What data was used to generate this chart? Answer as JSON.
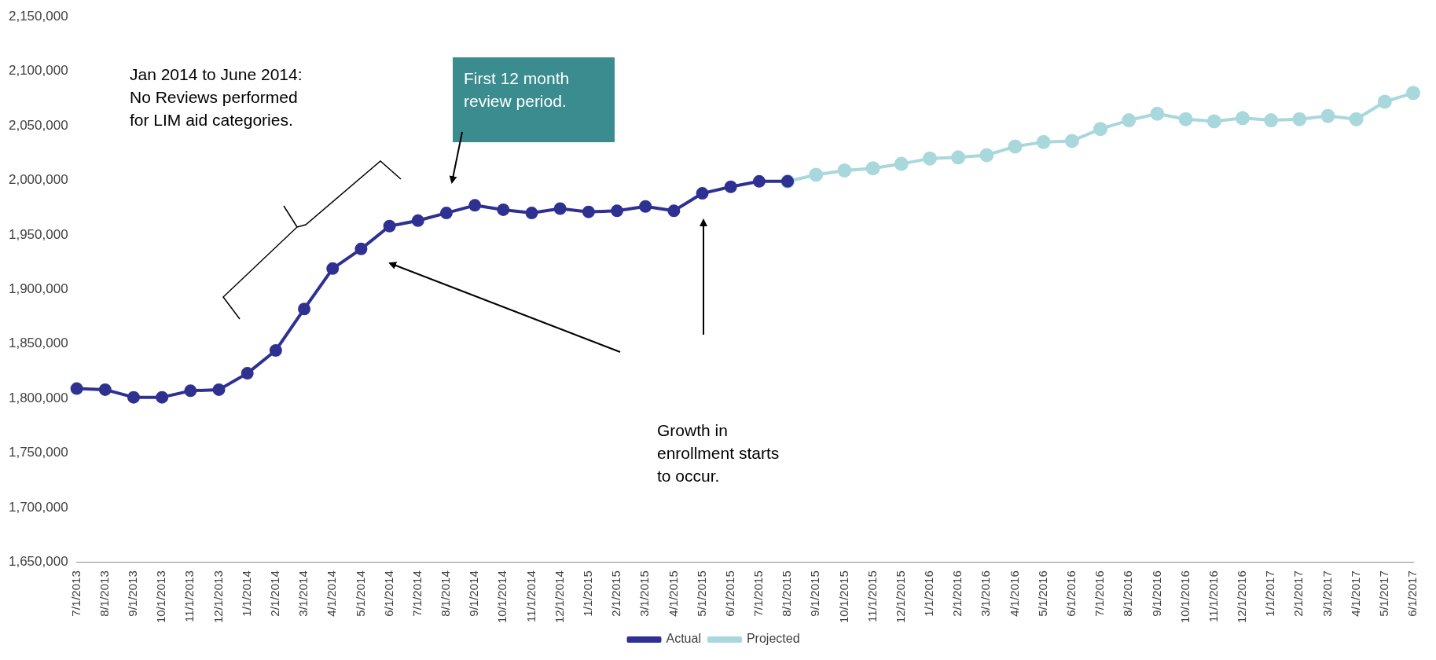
{
  "chart_data": {
    "type": "line",
    "categories": [
      "7/1/2013",
      "8/1/2013",
      "9/1/2013",
      "10/1/2013",
      "11/1/2013",
      "12/1/2013",
      "1/1/2014",
      "2/1/2014",
      "3/1/2014",
      "4/1/2014",
      "5/1/2014",
      "6/1/2014",
      "7/1/2014",
      "8/1/2014",
      "9/1/2014",
      "10/1/2014",
      "11/1/2014",
      "12/1/2014",
      "1/1/2015",
      "2/1/2015",
      "3/1/2015",
      "4/1/2015",
      "5/1/2015",
      "6/1/2015",
      "7/1/2015",
      "8/1/2015",
      "9/1/2015",
      "10/1/2015",
      "11/1/2015",
      "12/1/2015",
      "1/1/2016",
      "2/1/2016",
      "3/1/2016",
      "4/1/2016",
      "5/1/2016",
      "6/1/2016",
      "7/1/2016",
      "8/1/2016",
      "9/1/2016",
      "10/1/2016",
      "11/1/2016",
      "12/1/2016",
      "1/1/2017",
      "2/1/2017",
      "3/1/2017",
      "4/1/2017",
      "5/1/2017",
      "6/1/2017"
    ],
    "series": [
      {
        "name": "Projected",
        "color": "#a8d8dc",
        "values": [
          null,
          null,
          null,
          null,
          null,
          null,
          null,
          null,
          null,
          null,
          null,
          null,
          null,
          null,
          null,
          null,
          null,
          null,
          null,
          null,
          null,
          null,
          null,
          null,
          null,
          1999000,
          2005000,
          2009000,
          2011000,
          2015000,
          2020000,
          2021000,
          2023000,
          2031000,
          2035000,
          2036000,
          2047000,
          2055000,
          2061000,
          2056000,
          2054000,
          2057000,
          2055000,
          2056000,
          2059000,
          2056000,
          2072000,
          2080000
        ]
      },
      {
        "name": "Actual",
        "color": "#2e3192",
        "values": [
          1809000,
          1808000,
          1801000,
          1801000,
          1807000,
          1808000,
          1823000,
          1844000,
          1882000,
          1919000,
          1937000,
          1958000,
          1963000,
          1970000,
          1977000,
          1973000,
          1970000,
          1974000,
          1971000,
          1972000,
          1976000,
          1972000,
          1988000,
          1994000,
          1999000,
          1999000,
          null,
          null,
          null,
          null,
          null,
          null,
          null,
          null,
          null,
          null,
          null,
          null,
          null,
          null,
          null,
          null,
          null,
          null,
          null,
          null,
          null,
          null
        ]
      }
    ],
    "ylim": [
      1650000,
      2150000
    ],
    "yticks": [
      {
        "value": 1650000,
        "label": "1,650,000"
      },
      {
        "value": 1700000,
        "label": "1,700,000"
      },
      {
        "value": 1750000,
        "label": "1,750,000"
      },
      {
        "value": 1800000,
        "label": "1,800,000"
      },
      {
        "value": 1850000,
        "label": "1,850,000"
      },
      {
        "value": 1900000,
        "label": "1,900,000"
      },
      {
        "value": 1950000,
        "label": "1,950,000"
      },
      {
        "value": 2000000,
        "label": "2,000,000"
      },
      {
        "value": 2050000,
        "label": "2,050,000"
      },
      {
        "value": 2100000,
        "label": "2,100,000"
      },
      {
        "value": 2150000,
        "label": "2,150,000"
      }
    ],
    "grid": false,
    "legend": "bottom",
    "marker": "circle",
    "line_style": "solid",
    "annotations": [
      "Jan 2014 to June 2014:\nNo Reviews performed\nfor LIM aid categories.",
      "First 12 month\nreview period.",
      "Growth in\nenrollment starts\nto occur."
    ]
  }
}
